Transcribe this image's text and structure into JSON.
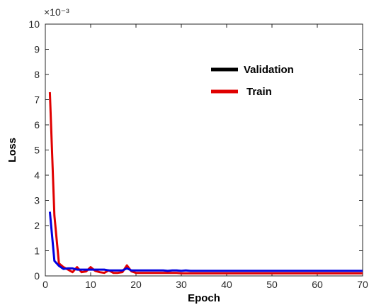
{
  "chart_data": {
    "type": "line",
    "xlabel": "Epoch",
    "ylabel": "Loss",
    "y_exponent_label": "×10⁻³",
    "xlim": [
      0,
      70
    ],
    "ylim": [
      0,
      10
    ],
    "xticks": [
      0,
      10,
      20,
      30,
      40,
      50,
      60,
      70
    ],
    "yticks": [
      0,
      1,
      2,
      3,
      4,
      5,
      6,
      7,
      8,
      9,
      10
    ],
    "grid": false,
    "legend_position": "top-right",
    "legend": [
      {
        "label": "Validation",
        "color": "#000000"
      },
      {
        "label": "Train",
        "color": "#e00000"
      }
    ],
    "x": [
      1,
      2,
      3,
      4,
      5,
      6,
      7,
      8,
      9,
      10,
      11,
      12,
      13,
      14,
      15,
      16,
      17,
      18,
      19,
      20,
      21,
      22,
      23,
      24,
      25,
      26,
      27,
      28,
      29,
      30,
      31,
      32,
      33,
      34,
      35,
      36,
      37,
      38,
      39,
      40,
      41,
      42,
      43,
      44,
      45,
      46,
      47,
      48,
      49,
      50,
      51,
      52,
      53,
      54,
      55,
      56,
      57,
      58,
      59,
      60,
      61,
      62,
      63,
      64,
      65,
      66,
      67,
      68,
      69,
      70
    ],
    "series": [
      {
        "color": "#e00000",
        "values": [
          7.3,
          2.4,
          0.5,
          0.35,
          0.25,
          0.15,
          0.35,
          0.15,
          0.18,
          0.35,
          0.2,
          0.15,
          0.12,
          0.22,
          0.12,
          0.12,
          0.15,
          0.42,
          0.18,
          0.12,
          0.12,
          0.12,
          0.12,
          0.12,
          0.12,
          0.12,
          0.12,
          0.12,
          0.12,
          0.1,
          0.1,
          0.1,
          0.1,
          0.1,
          0.1,
          0.1,
          0.1,
          0.1,
          0.1,
          0.1,
          0.1,
          0.1,
          0.1,
          0.1,
          0.1,
          0.1,
          0.1,
          0.1,
          0.1,
          0.1,
          0.1,
          0.1,
          0.1,
          0.1,
          0.1,
          0.1,
          0.1,
          0.1,
          0.1,
          0.1,
          0.1,
          0.1,
          0.1,
          0.1,
          0.1,
          0.1,
          0.1,
          0.1,
          0.1,
          0.1
        ]
      },
      {
        "color": "#0000e0",
        "values": [
          2.55,
          0.6,
          0.4,
          0.28,
          0.3,
          0.3,
          0.25,
          0.25,
          0.25,
          0.25,
          0.25,
          0.25,
          0.25,
          0.22,
          0.22,
          0.22,
          0.22,
          0.3,
          0.22,
          0.22,
          0.22,
          0.22,
          0.22,
          0.22,
          0.22,
          0.22,
          0.2,
          0.22,
          0.22,
          0.2,
          0.22,
          0.2,
          0.2,
          0.2,
          0.2,
          0.2,
          0.2,
          0.2,
          0.2,
          0.2,
          0.2,
          0.2,
          0.2,
          0.2,
          0.2,
          0.2,
          0.2,
          0.2,
          0.2,
          0.2,
          0.2,
          0.2,
          0.2,
          0.2,
          0.2,
          0.2,
          0.2,
          0.2,
          0.2,
          0.2,
          0.2,
          0.2,
          0.2,
          0.2,
          0.2,
          0.2,
          0.2,
          0.2,
          0.2,
          0.2
        ]
      }
    ]
  }
}
